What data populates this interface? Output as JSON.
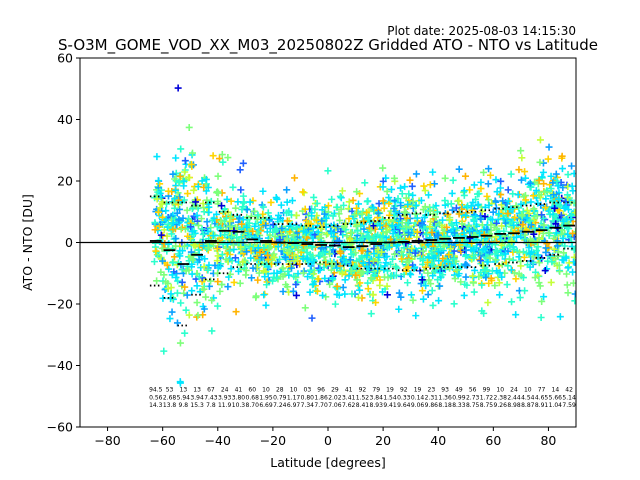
{
  "chart_data": {
    "type": "scatter",
    "title": "S-O3M_GOME_VOD_XX_M03_20250802Z Gridded ATO - NTO vs Latitude",
    "subtitle": "Plot date: 2025-08-03 14:15:30",
    "xlabel": "Latitude [degrees]",
    "ylabel": "ATO - NTO [DU]",
    "xlim": [
      -90,
      90
    ],
    "ylim": [
      -60,
      60
    ],
    "xticks": [
      -80,
      -60,
      -40,
      -20,
      0,
      20,
      40,
      60,
      80
    ],
    "yticks": [
      -60,
      -40,
      -20,
      0,
      20,
      40,
      60
    ],
    "grid": false,
    "zero_line": 0,
    "scatter_colors": [
      "#00e5ff",
      "#2bffcd",
      "#7dff7a",
      "#c4ff3a",
      "#ffd400",
      "#ffb300",
      "#0aa0ff",
      "#1f5fff",
      "#0000d8"
    ],
    "scatter_cloud": [
      {
        "x": -60,
        "mean": -4,
        "std": 16
      },
      {
        "x": -55,
        "mean": 2,
        "std": 19
      },
      {
        "x": -50,
        "mean": 4,
        "std": 18
      },
      {
        "x": -45,
        "mean": 2,
        "std": 17
      },
      {
        "x": -40,
        "mean": 3,
        "std": 14
      },
      {
        "x": -35,
        "mean": 1,
        "std": 12
      },
      {
        "x": -30,
        "mean": 1,
        "std": 11
      },
      {
        "x": -25,
        "mean": 0,
        "std": 10
      },
      {
        "x": -20,
        "mean": -1,
        "std": 10
      },
      {
        "x": -15,
        "mean": -1,
        "std": 10
      },
      {
        "x": -10,
        "mean": -1,
        "std": 10
      },
      {
        "x": -5,
        "mean": 0,
        "std": 10
      },
      {
        "x": 0,
        "mean": -1,
        "std": 10
      },
      {
        "x": 5,
        "mean": -2,
        "std": 11
      },
      {
        "x": 10,
        "mean": -1,
        "std": 11
      },
      {
        "x": 15,
        "mean": 0,
        "std": 11
      },
      {
        "x": 20,
        "mean": 0,
        "std": 12
      },
      {
        "x": 25,
        "mean": 1,
        "std": 12
      },
      {
        "x": 30,
        "mean": 1,
        "std": 12
      },
      {
        "x": 35,
        "mean": 0,
        "std": 11
      },
      {
        "x": 40,
        "mean": 0,
        "std": 11
      },
      {
        "x": 45,
        "mean": 1,
        "std": 11
      },
      {
        "x": 50,
        "mean": 1,
        "std": 11
      },
      {
        "x": 55,
        "mean": 2,
        "std": 12
      },
      {
        "x": 60,
        "mean": 2,
        "std": 12
      },
      {
        "x": 65,
        "mean": 3,
        "std": 12
      },
      {
        "x": 70,
        "mean": 3,
        "std": 13
      },
      {
        "x": 75,
        "mean": 4,
        "std": 14
      },
      {
        "x": 80,
        "mean": 5,
        "std": 15
      },
      {
        "x": 85,
        "mean": 6,
        "std": 13
      }
    ],
    "bin_stats": {
      "x": [
        -62.5,
        -57.5,
        -52.5,
        -47.5,
        -42.5,
        -37.5,
        -32.5,
        -27.5,
        -22.5,
        -17.5,
        -12.5,
        -7.5,
        -2.5,
        2.5,
        7.5,
        12.5,
        17.5,
        22.5,
        27.5,
        32.5,
        37.5,
        42.5,
        47.5,
        52.5,
        57.5,
        62.5,
        67.5,
        72.5,
        77.5,
        82.5,
        87.5
      ],
      "mean": [
        0.5,
        -2.5,
        -7.0,
        -4.0,
        0.5,
        3.8,
        3.5,
        1.0,
        0.5,
        0.0,
        -0.2,
        -0.5,
        -0.8,
        -1.0,
        -1.5,
        -1.2,
        -0.5,
        0.0,
        0.2,
        0.5,
        0.8,
        1.2,
        1.5,
        1.8,
        2.2,
        2.8,
        3.0,
        3.5,
        4.0,
        4.8,
        5.5
      ],
      "upper": [
        15,
        13,
        13,
        12,
        13,
        10,
        9,
        8,
        8,
        6,
        6,
        5.5,
        5,
        5.5,
        6,
        6.5,
        7,
        8,
        9,
        9.5,
        9,
        9.5,
        10,
        10,
        10.5,
        11,
        11.5,
        12,
        12.5,
        13,
        13
      ],
      "lower": [
        -14,
        -18,
        -27,
        -17,
        -12,
        -10,
        -8,
        -7,
        -7,
        -7,
        -7,
        -7,
        -6.5,
        -7,
        -7.5,
        -8.5,
        -8.5,
        -8.5,
        -9,
        -9,
        -8.5,
        -8,
        -8,
        -8,
        -7.5,
        -7,
        -6.5,
        -6,
        -5,
        -4,
        -2
      ]
    },
    "stats_rows": [
      [
        "94.5",
        "53",
        "13",
        "13",
        "67",
        "24",
        "41",
        "60",
        "10",
        "28",
        "10",
        "03",
        "96",
        "29",
        "41",
        "92",
        "79",
        "19",
        "92",
        "19",
        "23",
        "93",
        "49",
        "56",
        "99",
        "10",
        "24",
        "10",
        "77",
        "14",
        "42"
      ],
      [
        "0.56",
        "2.68",
        "5.94",
        "3.94",
        "7.43",
        "3.93",
        "3.80",
        "0.68",
        "1.95",
        "0.79",
        "1.17",
        "0.80",
        "1.86",
        "2.02",
        "3.41",
        "1.52",
        "3.84",
        "1.54",
        "0.33",
        "0.14",
        "2.31",
        "1.36",
        "0.99",
        "2.73",
        "1.72",
        "2.38",
        "2.44",
        "4.54",
        "4.65",
        "5.66",
        "5.14"
      ],
      [
        "14.3",
        "13.8",
        "9.8",
        "15.3",
        "7.8",
        "11.9",
        "10.3",
        "8.70",
        "6.69",
        "7.24",
        "6.97",
        "7.34",
        "7.70",
        "7.06",
        "7.62",
        "8.41",
        "8.93",
        "9.41",
        "9.64",
        "9.06",
        "9.86",
        "8.18",
        "8.33",
        "8.75",
        "8.75",
        "9.26",
        "8.98",
        "8.87",
        "8.91",
        "1.04",
        "7.59"
      ]
    ]
  }
}
